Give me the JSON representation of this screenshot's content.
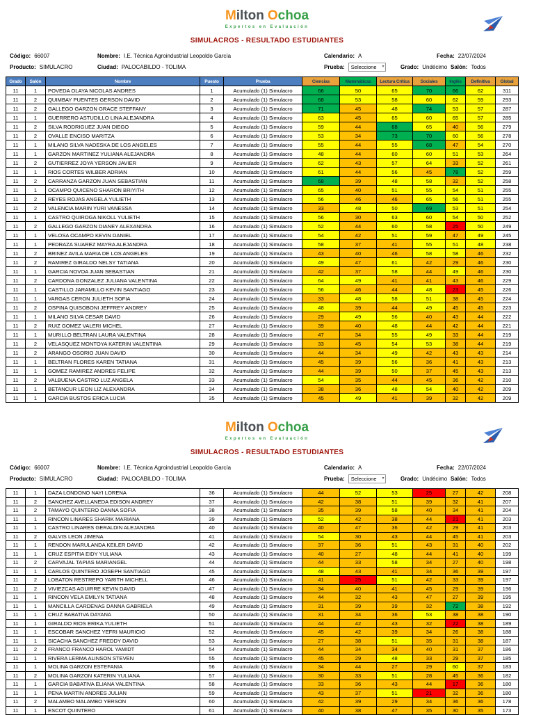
{
  "brand": {
    "m": "M",
    "ilton": "ilton",
    "o": "O",
    "choa": "choa",
    "tagline": "Expertos en Evaluación",
    "colors": {
      "mark_orange": "#F7941D",
      "text_gray": "#4A4F54",
      "green": "#39A04A"
    }
  },
  "title": "SIMULACROS - RESULTADO ESTUDIANTES",
  "title_color": "#9C1006",
  "info": {
    "codigo_label": "Código:",
    "codigo": "66007",
    "nombre_label": "Nombre:",
    "nombre": "I.E. Técnica Agroindustrial Leopoldo García",
    "calendario_label": "Calendario:",
    "calendario": "A",
    "fecha_label": "Fecha:",
    "fecha": "22/07/2024",
    "producto_label": "Producto:",
    "producto": "SIMULACRO",
    "ciudad_label": "Ciudad:",
    "ciudad": "PALOCABILDO - TOLIMA",
    "prueba_label": "Prueba:",
    "prueba": "Seleccione",
    "grado_label": "Grado:",
    "grado": "Undécimo",
    "salon_label": "Salón:",
    "salon": "Todos"
  },
  "table": {
    "headers": [
      "Grado",
      "Salón",
      "Nombre",
      "Puesto",
      "Prueba",
      "Ciencias",
      "Matemáticas",
      "Lectura Crítica",
      "Sociales",
      "Inglés",
      "Definitiva",
      "Global"
    ],
    "header_styles": [
      "blue",
      "blue",
      "blue",
      "blue",
      "blue",
      "orange",
      "green",
      "orange",
      "orange",
      "green",
      "orange",
      "orange"
    ],
    "header_fill": {
      "blue": "#4D7EBF",
      "orange": "#E9A23B",
      "green": "#00B050"
    },
    "header_text_color": {
      "blue": "#FFFFFF",
      "orange": "#17375E",
      "green": "#17375E"
    },
    "prueba_value": "Acumulado (1) Simulacro",
    "score_colors": {
      "green": "#00B050",
      "yellow": "#FFFF00",
      "orange": "#FFC000",
      "red": "#FF0000"
    },
    "thresholds": {
      "red_max": 25,
      "orange_max": 47,
      "yellow_max": 65
    },
    "rows_page1": [
      [
        "11",
        "1",
        "POVEDA OLAYA NICOLAS ANDRES",
        "1",
        66,
        50,
        65,
        70,
        66,
        62,
        311
      ],
      [
        "11",
        "2",
        "QUIMBAY PUENTES GERSON DAVID",
        "2",
        68,
        53,
        58,
        60,
        62,
        59,
        293
      ],
      [
        "11",
        "2",
        "GALLEGO GARZON GRACE STEFFANY",
        "3",
        71,
        45,
        48,
        74,
        53,
        57,
        287
      ],
      [
        "11",
        "1",
        "GUERRERO ASTUDILLO LINA ALEJANDRA",
        "4",
        63,
        45,
        65,
        60,
        65,
        57,
        285
      ],
      [
        "11",
        "2",
        "SILVA RODRIGUEZ JUAN DIEGO",
        "5",
        59,
        44,
        68,
        65,
        40,
        56,
        279
      ],
      [
        "11",
        "2",
        "OVALLE ENCISO MARITZA",
        "6",
        53,
        34,
        73,
        70,
        60,
        56,
        278
      ],
      [
        "11",
        "1",
        "MILANO SILVA NADESKA DE LOS ANGELES",
        "7",
        55,
        44,
        55,
        68,
        47,
        54,
        270
      ],
      [
        "11",
        "1",
        "GARZON MARTINEZ YULIANA ALEJANDRA",
        "8",
        48,
        44,
        60,
        60,
        51,
        53,
        264
      ],
      [
        "11",
        "2",
        "GUTIERREZ JOYA YERSON JAVIER",
        "9",
        62,
        43,
        57,
        64,
        33,
        52,
        261
      ],
      [
        "11",
        "1",
        "RIOS CORTES WILBER ADRIAN",
        "10",
        61,
        44,
        56,
        45,
        78,
        52,
        259
      ],
      [
        "11",
        "2",
        "CARRANZA GARZON JUAN SEBASTIAN",
        "11",
        68,
        39,
        48,
        58,
        32,
        52,
        258
      ],
      [
        "11",
        "1",
        "OCAMPO QUICENO SHARON BRIYITH",
        "12",
        65,
        40,
        51,
        55,
        54,
        51,
        255
      ],
      [
        "11",
        "2",
        "REYES ROJAS ANGELA YULIETH",
        "13",
        56,
        46,
        46,
        65,
        56,
        51,
        255
      ],
      [
        "11",
        "2",
        "VALENCIA MARIN YURI VANESSA",
        "14",
        33,
        48,
        50,
        69,
        53,
        51,
        254
      ],
      [
        "11",
        "1",
        "CASTRO QUIROGA NIKOLL YULIETH",
        "15",
        56,
        30,
        63,
        60,
        54,
        50,
        252
      ],
      [
        "11",
        "2",
        "GALLEGO GARZON DIANEY ALEXANDRA",
        "16",
        52,
        44,
        60,
        58,
        25,
        50,
        249
      ],
      [
        "11",
        "1",
        "VELOSA OCAMPO KEVIN DANIEL",
        "17",
        54,
        42,
        51,
        59,
        47,
        49,
        245
      ],
      [
        "11",
        "1",
        "PEDRAZA SUAREZ MAYRA ALEJANDRA",
        "18",
        58,
        37,
        41,
        55,
        51,
        48,
        238
      ],
      [
        "11",
        "2",
        "BRINEZ AVILA MARIA DE LOS ANGELES",
        "19",
        43,
        40,
        46,
        58,
        58,
        46,
        232
      ],
      [
        "11",
        "2",
        "RAMIREZ GIRALDO NELSY TATIANA",
        "20",
        49,
        47,
        61,
        42,
        29,
        46,
        230
      ],
      [
        "11",
        "1",
        "GARCIA NOVOA JUAN SEBASTIAN",
        "21",
        42,
        37,
        58,
        44,
        49,
        46,
        230
      ],
      [
        "11",
        "2",
        "CARDONA GONZALEZ JULIANA VALENTINA",
        "22",
        64,
        49,
        41,
        41,
        43,
        46,
        229
      ],
      [
        "11",
        "1",
        "CASTILLO JARAMILLO KEVIN SANTIAGO",
        "23",
        56,
        46,
        44,
        48,
        23,
        45,
        226
      ],
      [
        "11",
        "1",
        "VARGAS CERON JULIETH SOFIA",
        "24",
        33,
        48,
        58,
        51,
        38,
        45,
        224
      ],
      [
        "11",
        "2",
        "OSPINA QUISOBONI JEFFREY ANDREY",
        "25",
        48,
        39,
        44,
        49,
        45,
        45,
        223
      ],
      [
        "11",
        "1",
        "MILANO SILVA CESAR DAVID",
        "26",
        29,
        49,
        56,
        40,
        43,
        44,
        222
      ],
      [
        "11",
        "2",
        "RUIZ GOMEZ VALERI MICHEL",
        "27",
        39,
        40,
        48,
        44,
        42,
        44,
        221
      ],
      [
        "11",
        "1",
        "MURILLO BELTRAN LAURA VALENTINA",
        "28",
        47,
        34,
        55,
        49,
        33,
        44,
        219
      ],
      [
        "11",
        "2",
        "VELASQUEZ MONTOYA KATERIN VALENTINA",
        "29",
        33,
        45,
        54,
        53,
        38,
        44,
        219
      ],
      [
        "11",
        "2",
        "ARANGO OSORIO JUAN DAVID",
        "30",
        44,
        34,
        49,
        42,
        43,
        43,
        214
      ],
      [
        "11",
        "1",
        "BELTRAN FLORES KAREN TATIANA",
        "31",
        45,
        39,
        56,
        36,
        41,
        43,
        213
      ],
      [
        "11",
        "1",
        "GOMEZ RAMIREZ ANDRES FELIPE",
        "32",
        44,
        39,
        50,
        37,
        45,
        43,
        213
      ],
      [
        "11",
        "2",
        "VALBUENA CASTRO LUZ ANGELA",
        "33",
        54,
        35,
        44,
        45,
        36,
        42,
        210
      ],
      [
        "11",
        "1",
        "BETANCUR LEON LIZ ALEXANDRA",
        "34",
        38,
        36,
        48,
        54,
        40,
        42,
        209
      ],
      [
        "11",
        "1",
        "GARCIA BUSTOS ERICA LUCIA",
        "35",
        45,
        49,
        41,
        39,
        32,
        42,
        209
      ]
    ],
    "rows_page2": [
      [
        "11",
        "1",
        "DAZA LONDONO NAYI LORENA",
        "36",
        44,
        52,
        53,
        25,
        27,
        42,
        208
      ],
      [
        "11",
        "2",
        "SANCHEZ AVELLANEDA EDISON ANDREY",
        "37",
        42,
        38,
        51,
        39,
        32,
        41,
        207
      ],
      [
        "11",
        "2",
        "TAMAYO QUINTERO DANNA SOFIA",
        "38",
        35,
        39,
        58,
        40,
        34,
        41,
        204
      ],
      [
        "11",
        "1",
        "RINCON LINARES SHARIK MARIANA",
        "39",
        52,
        42,
        38,
        44,
        21,
        41,
        203
      ],
      [
        "11",
        "1",
        "CASTRO LINARES GERALDIN ALEJANDRA",
        "40",
        40,
        47,
        36,
        42,
        29,
        41,
        203
      ],
      [
        "11",
        "2",
        "GALVIS LEON JIMENA",
        "41",
        54,
        30,
        43,
        44,
        45,
        41,
        203
      ],
      [
        "11",
        "1",
        "RENDON MARULANDA KEILER DAVID",
        "42",
        37,
        36,
        51,
        43,
        31,
        40,
        202
      ],
      [
        "11",
        "1",
        "CRUZ ESPITIA EIDY YULIANA",
        "43",
        40,
        27,
        48,
        44,
        41,
        40,
        199
      ],
      [
        "11",
        "2",
        "CARVAJAL TAPIAS MARIANGEL",
        "44",
        44,
        33,
        58,
        34,
        27,
        40,
        198
      ],
      [
        "11",
        "1",
        "CARLOS QUINTERO JOSEPH SANTIAGO",
        "45",
        48,
        43,
        41,
        34,
        36,
        39,
        197
      ],
      [
        "11",
        "2",
        "LOBATON RESTREPO YARITH MICHELL",
        "46",
        41,
        25,
        51,
        42,
        33,
        39,
        197
      ],
      [
        "11",
        "2",
        "VIVIEZCAS AGUIRRE KEVIN DAVID",
        "47",
        34,
        40,
        41,
        45,
        29,
        39,
        196
      ],
      [
        "11",
        "1",
        "RINCON VELA EMILYN TATIANA",
        "48",
        44,
        32,
        43,
        47,
        27,
        39,
        195
      ],
      [
        "11",
        "1",
        "MANCILLA CARDENAS DANNA GABRIELA",
        "49",
        31,
        39,
        39,
        32,
        72,
        38,
        192
      ],
      [
        "11",
        "1",
        "CRUZ BABATIVA DAYANA",
        "50",
        31,
        34,
        36,
        53,
        38,
        38,
        190
      ],
      [
        "11",
        "1",
        "GIRALDO RIOS ERIKA YULIETH",
        "51",
        44,
        42,
        43,
        32,
        22,
        38,
        189
      ],
      [
        "11",
        "1",
        "ESCOBAR SANCHEZ YEFRI MAURICIO",
        "52",
        45,
        42,
        39,
        34,
        26,
        38,
        188
      ],
      [
        "11",
        "1",
        "SICACHA SANCHEZ FREDDY DAVID",
        "53",
        27,
        38,
        51,
        35,
        31,
        38,
        187
      ],
      [
        "11",
        "2",
        "FRANCO FRANCO HAROL YAMIDT",
        "54",
        44,
        34,
        34,
        40,
        31,
        37,
        186
      ],
      [
        "11",
        "1",
        "RIVERA LERMA ALINSON STEVEN",
        "55",
        45,
        29,
        48,
        33,
        29,
        37,
        185
      ],
      [
        "11",
        "1",
        "MOLINA GARZON ESTEFANIA",
        "56",
        34,
        44,
        27,
        29,
        60,
        37,
        183
      ],
      [
        "11",
        "2",
        "MOLINA GARZON KATERIN YULIANA",
        "57",
        30,
        33,
        51,
        28,
        45,
        36,
        182
      ],
      [
        "11",
        "1",
        "GARCIA BABATIVA ELIANA VALENTINA",
        "58",
        33,
        36,
        43,
        44,
        17,
        36,
        180
      ],
      [
        "11",
        "1",
        "PENA MARTIN ANDRES JULIAN",
        "59",
        43,
        37,
        51,
        21,
        32,
        36,
        180
      ],
      [
        "11",
        "2",
        "MALAMBO MALAMBO YERSON",
        "60",
        42,
        39,
        29,
        34,
        36,
        36,
        178
      ],
      [
        "11",
        "1",
        "ESCOT QUINTERO",
        "61",
        40,
        38,
        47,
        35,
        30,
        35,
        173
      ]
    ]
  }
}
